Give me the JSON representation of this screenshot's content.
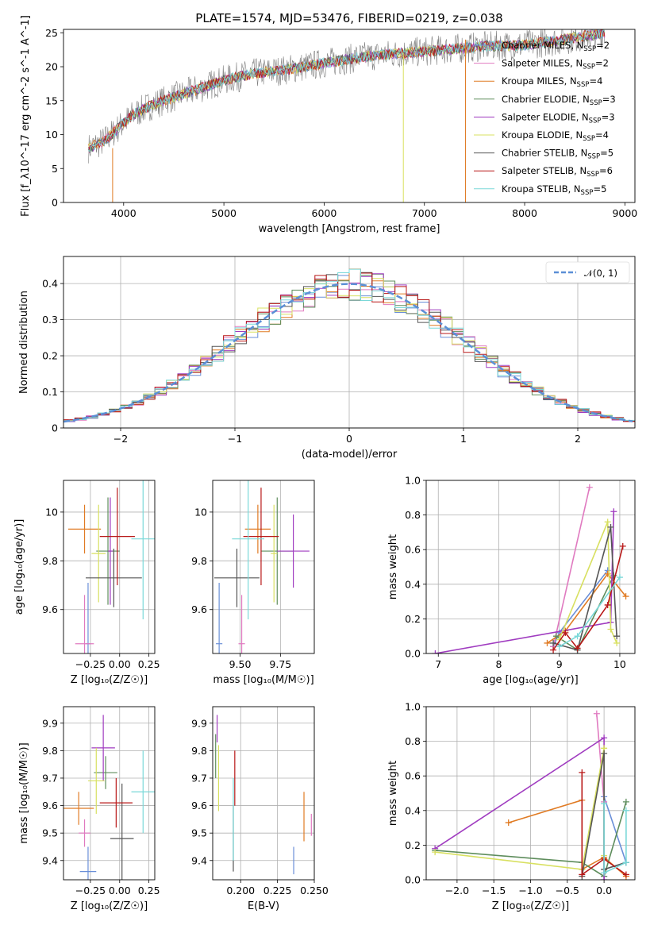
{
  "figure": {
    "title": "PLATE=1574, MJD=53476, FIBERID=0219, z=0.038"
  },
  "colors": [
    "#6a8fd8",
    "#e07ac0",
    "#e07b24",
    "#5e8d5c",
    "#a03cc0",
    "#d8e060",
    "#555555",
    "#b81818",
    "#7ad8d8"
  ],
  "chart_data": [
    {
      "type": "line",
      "name": "spectrum",
      "xlabel": "wavelength [Angstrom, rest frame]",
      "ylabel": "Flux [f_λ10^-17 erg cm^-2 s^-1 A^-1]",
      "xlim": [
        3400,
        9100
      ],
      "ylim": [
        0,
        25.5
      ],
      "xticks": [
        4000,
        5000,
        6000,
        7000,
        8000,
        9000
      ],
      "yticks": [
        0,
        5,
        10,
        15,
        20,
        25
      ],
      "grid": false,
      "legend_position": "right",
      "observed_color": "#808080",
      "series": [
        {
          "name": "Chabrier MILES, N_SSP=2",
          "sub": "SSP",
          "pre": "Chabrier MILES, N",
          "post": "=2"
        },
        {
          "name": "Salpeter MILES, N_SSP=2",
          "sub": "SSP",
          "pre": "Salpeter MILES, N",
          "post": "=2"
        },
        {
          "name": "Kroupa MILES, N_SSP=4",
          "sub": "SSP",
          "pre": "Kroupa MILES, N",
          "post": "=4"
        },
        {
          "name": "Chabrier ELODIE, N_SSP=3",
          "sub": "SSP",
          "pre": "Chabrier ELODIE, N",
          "post": "=3"
        },
        {
          "name": "Salpeter ELODIE, N_SSP=3",
          "sub": "SSP",
          "pre": "Salpeter ELODIE, N",
          "post": "=3"
        },
        {
          "name": "Kroupa ELODIE, N_SSP=4",
          "sub": "SSP",
          "pre": "Kroupa ELODIE, N",
          "post": "=4"
        },
        {
          "name": "Chabrier STELIB, N_SSP=5",
          "sub": "SSP",
          "pre": "Chabrier STELIB, N",
          "post": "=5"
        },
        {
          "name": "Salpeter STELIB, N_SSP=6",
          "sub": "SSP",
          "pre": "Salpeter STELIB, N",
          "post": "=6"
        },
        {
          "name": "Kroupa STELIB, N_SSP=5",
          "sub": "SSP",
          "pre": "Kroupa STELIB, N",
          "post": "=5"
        }
      ],
      "continuum": {
        "x": [
          3650,
          3800,
          3950,
          4100,
          4300,
          4500,
          4800,
          5000,
          5300,
          5600,
          6000,
          6400,
          6800,
          7200,
          7600,
          8000,
          8400,
          8800
        ],
        "y": [
          8,
          9,
          11,
          13,
          14.5,
          15.5,
          17,
          18,
          19,
          19.5,
          20.5,
          21.5,
          22,
          22.5,
          23,
          23.2,
          24,
          25
        ]
      },
      "dropouts": [
        {
          "series": 2,
          "x": 3890,
          "from": 8,
          "to": 0
        },
        {
          "series": 5,
          "x": 6790,
          "from": 22,
          "to": 0
        },
        {
          "series": 2,
          "x": 7410,
          "from": 24,
          "to": 0
        }
      ]
    },
    {
      "type": "line",
      "name": "residual-histogram",
      "xlabel": "(data-model)/error",
      "ylabel": "Normed distribution",
      "xlim": [
        -2.5,
        2.5
      ],
      "ylim": [
        0,
        0.475
      ],
      "xticks": [
        -2,
        -1,
        0,
        1,
        2
      ],
      "yticks": [
        0,
        0.1,
        0.2,
        0.3,
        0.4
      ],
      "grid": true,
      "legend": "𝒩(0, 1)",
      "legend_position": "top-right",
      "normal_color": "#5b8fd6",
      "bin_width": 0.1
    },
    {
      "type": "scatter",
      "name": "age-vs-Z",
      "xlabel": "Z [log₁₀(Z/Z☉)]",
      "ylabel": "age  [log₁₀(age/yr)]",
      "xlim": [
        -0.48,
        0.3
      ],
      "ylim": [
        9.42,
        10.13
      ],
      "xticks": [
        -0.25,
        0.0,
        0.25
      ],
      "xticklabels": [
        "−0.25",
        "0.00",
        "0.25"
      ],
      "yticks": [
        9.6,
        9.8,
        10.0
      ],
      "grid": true,
      "points": [
        {
          "series": 0,
          "x": -0.27,
          "y": 9.46,
          "xerr": 0.02,
          "yerr": 0.25
        },
        {
          "series": 1,
          "x": -0.3,
          "y": 9.46,
          "xerr": 0.08,
          "yerr": 0.2
        },
        {
          "series": 2,
          "x": -0.3,
          "y": 9.93,
          "xerr": 0.14,
          "yerr": 0.1
        },
        {
          "series": 3,
          "x": -0.1,
          "y": 9.84,
          "xerr": 0.1,
          "yerr": 0.22
        },
        {
          "series": 4,
          "x": -0.08,
          "y": 9.84,
          "xerr": 0.02,
          "yerr": 0.22
        },
        {
          "series": 5,
          "x": -0.18,
          "y": 9.83,
          "xerr": 0.06,
          "yerr": 0.2
        },
        {
          "series": 6,
          "x": -0.05,
          "y": 9.73,
          "xerr": 0.24,
          "yerr": 0.12
        },
        {
          "series": 7,
          "x": -0.02,
          "y": 9.9,
          "xerr": 0.15,
          "yerr": 0.2
        },
        {
          "series": 8,
          "x": 0.2,
          "y": 9.89,
          "xerr": 0.1,
          "yerr": 0.33
        }
      ]
    },
    {
      "type": "scatter",
      "name": "age-vs-mass",
      "xlabel": "mass [log₁₀(M/M☉)]",
      "ylabel": "",
      "xlim": [
        9.33,
        9.96
      ],
      "ylim": [
        9.42,
        10.13
      ],
      "xticks": [
        9.5,
        9.75
      ],
      "xticklabels": [
        "9.50",
        "9.75"
      ],
      "yticks": [
        9.6,
        9.8,
        10.0
      ],
      "grid": true,
      "points": [
        {
          "series": 0,
          "x": 9.37,
          "y": 9.46,
          "xerr": 0.02,
          "yerr": 0.25
        },
        {
          "series": 1,
          "x": 9.51,
          "y": 9.46,
          "xerr": 0.02,
          "yerr": 0.2
        },
        {
          "series": 2,
          "x": 9.61,
          "y": 9.93,
          "xerr": 0.08,
          "yerr": 0.1
        },
        {
          "series": 3,
          "x": 9.73,
          "y": 9.84,
          "xerr": 0.1,
          "yerr": 0.22
        },
        {
          "series": 4,
          "x": 9.83,
          "y": 9.84,
          "xerr": 0.1,
          "yerr": 0.15
        },
        {
          "series": 5,
          "x": 9.71,
          "y": 9.83,
          "xerr": 0.02,
          "yerr": 0.2
        },
        {
          "series": 6,
          "x": 9.48,
          "y": 9.73,
          "xerr": 0.14,
          "yerr": 0.12
        },
        {
          "series": 7,
          "x": 9.63,
          "y": 9.9,
          "xerr": 0.11,
          "yerr": 0.2
        },
        {
          "series": 8,
          "x": 9.55,
          "y": 9.89,
          "xerr": 0.1,
          "yerr": 0.33
        }
      ]
    },
    {
      "type": "line",
      "name": "massweight-vs-age",
      "xlabel": "age  [log₁₀(age/yr)]",
      "ylabel": "mass weight",
      "xlim": [
        6.8,
        10.25
      ],
      "ylim": [
        0,
        1.0
      ],
      "xticks": [
        7,
        8,
        9,
        10
      ],
      "yticks": [
        0,
        0.2,
        0.4,
        0.6,
        0.8,
        1.0
      ],
      "yticklabels": [
        "0.0",
        "0.2",
        "0.4",
        "0.6",
        "0.8",
        "1.0"
      ],
      "grid": true,
      "series": [
        {
          "series": 0,
          "x": [
            8.9,
            9.0,
            9.8
          ],
          "y": [
            0.04,
            0.12,
            0.48
          ]
        },
        {
          "series": 1,
          "x": [
            8.9,
            9.5
          ],
          "y": [
            0.04,
            0.96
          ]
        },
        {
          "series": 2,
          "x": [
            8.8,
            9.1,
            9.8,
            10.1
          ],
          "y": [
            0.06,
            0.13,
            0.46,
            0.33
          ]
        },
        {
          "series": 3,
          "x": [
            8.95,
            9.3,
            9.9
          ],
          "y": [
            0.1,
            0.02,
            0.45
          ]
        },
        {
          "series": 4,
          "x": [
            6.95,
            9.85,
            9.9
          ],
          "y": [
            0.0,
            0.18,
            0.82
          ]
        },
        {
          "series": 5,
          "x": [
            9.0,
            9.8,
            9.85,
            9.95
          ],
          "y": [
            0.08,
            0.76,
            0.14,
            0.06
          ]
        },
        {
          "series": 6,
          "x": [
            8.9,
            9.3,
            9.85,
            9.95
          ],
          "y": [
            0.06,
            0.02,
            0.73,
            0.1
          ]
        },
        {
          "series": 7,
          "x": [
            8.9,
            9.1,
            9.3,
            9.8,
            10.05
          ],
          "y": [
            0.02,
            0.12,
            0.03,
            0.28,
            0.62
          ]
        },
        {
          "series": 8,
          "x": [
            9.0,
            9.3,
            10.0
          ],
          "y": [
            0.04,
            0.1,
            0.44
          ]
        }
      ]
    },
    {
      "type": "scatter",
      "name": "mass-vs-Z",
      "xlabel": "Z [log₁₀(Z/Z☉)]",
      "ylabel": "mass [log₁₀(M/M☉)]",
      "xlim": [
        -0.48,
        0.3
      ],
      "ylim": [
        9.33,
        9.96
      ],
      "xticks": [
        -0.25,
        0.0,
        0.25
      ],
      "xticklabels": [
        "−0.25",
        "0.00",
        "0.25"
      ],
      "yticks": [
        9.4,
        9.5,
        9.6,
        9.7,
        9.8,
        9.9
      ],
      "grid": true,
      "points": [
        {
          "series": 0,
          "x": -0.27,
          "y": 9.36,
          "xerr": 0.07,
          "yerr": 0.09
        },
        {
          "series": 1,
          "x": -0.3,
          "y": 9.5,
          "xerr": 0.05,
          "yerr": 0.05
        },
        {
          "series": 2,
          "x": -0.35,
          "y": 9.59,
          "xerr": 0.13,
          "yerr": 0.06
        },
        {
          "series": 3,
          "x": -0.12,
          "y": 9.72,
          "xerr": 0.1,
          "yerr": 0.06
        },
        {
          "series": 4,
          "x": -0.14,
          "y": 9.81,
          "xerr": 0.1,
          "yerr": 0.12
        },
        {
          "series": 5,
          "x": -0.2,
          "y": 9.69,
          "xerr": 0.07,
          "yerr": 0.12
        },
        {
          "series": 6,
          "x": 0.02,
          "y": 9.48,
          "xerr": 0.1,
          "yerr": 0.2
        },
        {
          "series": 7,
          "x": -0.03,
          "y": 9.61,
          "xerr": 0.14,
          "yerr": 0.09
        },
        {
          "series": 8,
          "x": 0.2,
          "y": 9.65,
          "xerr": 0.1,
          "yerr": 0.15
        }
      ]
    },
    {
      "type": "scatter",
      "name": "mass-vs-EBV",
      "xlabel": "E(B-V)",
      "ylabel": "",
      "xlim": [
        0.181,
        0.25
      ],
      "ylim": [
        9.33,
        9.96
      ],
      "xticks": [
        0.2,
        0.225,
        0.25
      ],
      "xticklabels": [
        "0.200",
        "0.225",
        "0.250"
      ],
      "yticks": [
        9.4,
        9.5,
        9.6,
        9.7,
        9.8,
        9.9
      ],
      "grid": true,
      "points": [
        {
          "series": 0,
          "x": 0.236,
          "y": 9.4,
          "xerr": 0,
          "yerr": 0.05
        },
        {
          "series": 1,
          "x": 0.248,
          "y": 9.53,
          "xerr": 0,
          "yerr": 0.04
        },
        {
          "series": 2,
          "x": 0.243,
          "y": 9.56,
          "xerr": 0,
          "yerr": 0.09
        },
        {
          "series": 3,
          "x": 0.183,
          "y": 9.78,
          "xerr": 0,
          "yerr": 0.08
        },
        {
          "series": 4,
          "x": 0.184,
          "y": 9.88,
          "xerr": 0,
          "yerr": 0.05
        },
        {
          "series": 5,
          "x": 0.185,
          "y": 9.7,
          "xerr": 0,
          "yerr": 0.12
        },
        {
          "series": 6,
          "x": 0.195,
          "y": 9.48,
          "xerr": 0,
          "yerr": 0.12
        },
        {
          "series": 7,
          "x": 0.196,
          "y": 9.7,
          "xerr": 0,
          "yerr": 0.1
        },
        {
          "series": 8,
          "x": 0.195,
          "y": 9.55,
          "xerr": 0,
          "yerr": 0.15
        }
      ]
    },
    {
      "type": "line",
      "name": "massweight-vs-Z",
      "xlabel": "Z [log₁₀(Z/Z☉)]",
      "ylabel": "mass weight",
      "xlim": [
        -2.42,
        0.42
      ],
      "ylim": [
        0,
        1.0
      ],
      "xticks": [
        -2.0,
        -1.5,
        -1.0,
        -0.5,
        0.0
      ],
      "xticklabels": [
        "−2.0",
        "−1.5",
        "−1.0",
        "−0.5",
        "0.0"
      ],
      "yticks": [
        0,
        0.2,
        0.4,
        0.6,
        0.8,
        1.0
      ],
      "yticklabels": [
        "0.0",
        "0.2",
        "0.4",
        "0.6",
        "0.8",
        "1.0"
      ],
      "grid": true,
      "series": [
        {
          "series": 0,
          "x": [
            0.0,
            0.0,
            0.3
          ],
          "y": [
            0.02,
            0.48,
            0.1
          ]
        },
        {
          "series": 1,
          "x": [
            -0.1,
            0.0,
            0.0
          ],
          "y": [
            0.96,
            0.45,
            0.02
          ]
        },
        {
          "series": 2,
          "x": [
            -1.3,
            -0.3,
            -0.3,
            0.0,
            0.3
          ],
          "y": [
            0.33,
            0.46,
            0.06,
            0.13,
            0.02
          ]
        },
        {
          "series": 3,
          "x": [
            -2.3,
            -0.3,
            0.0,
            0.3
          ],
          "y": [
            0.17,
            0.1,
            0.02,
            0.45
          ]
        },
        {
          "series": 4,
          "x": [
            -2.3,
            0.0,
            0.0
          ],
          "y": [
            0.18,
            0.82,
            0.0
          ]
        },
        {
          "series": 5,
          "x": [
            -2.3,
            -0.3,
            0.0,
            0.0
          ],
          "y": [
            0.16,
            0.06,
            0.76,
            0.14
          ]
        },
        {
          "series": 6,
          "x": [
            -0.3,
            0.0,
            0.0,
            0.3
          ],
          "y": [
            0.02,
            0.73,
            0.06,
            0.1
          ]
        },
        {
          "series": 7,
          "x": [
            -0.3,
            -0.3,
            0.0,
            0.3
          ],
          "y": [
            0.62,
            0.03,
            0.12,
            0.03
          ]
        },
        {
          "series": 8,
          "x": [
            0.0,
            0.0,
            0.3,
            0.3
          ],
          "y": [
            0.44,
            0.04,
            0.1,
            0.4
          ]
        }
      ]
    }
  ]
}
